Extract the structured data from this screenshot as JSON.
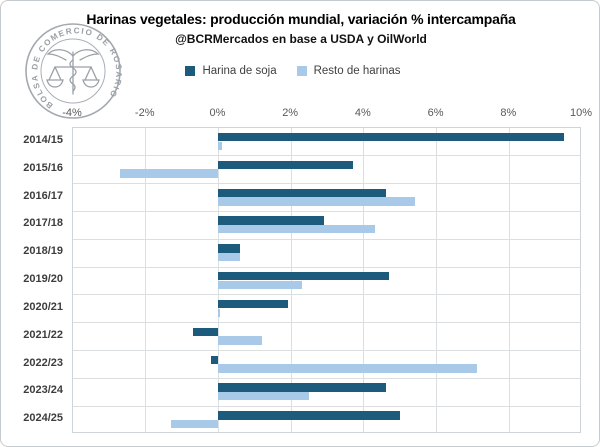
{
  "header": {
    "title": "Harinas vegetales: producción mundial, variación % intercampaña",
    "subtitle": "@BCRMercados en base a USDA y OilWorld"
  },
  "logo": {
    "ring_text": "BOLSA DE COMERCIO DE ROSARIO",
    "color": "#9aa0a7"
  },
  "chart_data": {
    "type": "bar",
    "orientation": "horizontal",
    "title": "Harinas vegetales: producción mundial, variación % intercampaña",
    "subtitle": "@BCRMercados en base a USDA y OilWorld",
    "categories": [
      "2014/15",
      "2015/16",
      "2016/17",
      "2017/18",
      "2018/19",
      "2019/20",
      "2020/21",
      "2021/22",
      "2022/23",
      "2023/24",
      "2024/25"
    ],
    "series": [
      {
        "name": "Harina de soja",
        "color": "#1d5b7d",
        "values": [
          9.5,
          3.7,
          4.6,
          2.9,
          0.6,
          4.7,
          1.9,
          -0.7,
          -0.2,
          4.6,
          5.0
        ]
      },
      {
        "name": "Resto de harinas",
        "color": "#a9c9e8",
        "values": [
          0.1,
          -2.7,
          5.4,
          4.3,
          0.6,
          2.3,
          0.05,
          1.2,
          7.1,
          2.5,
          -1.3
        ]
      }
    ],
    "xlim": [
      -4,
      10
    ],
    "xticks": [
      -4,
      -2,
      0,
      2,
      4,
      6,
      8,
      10
    ],
    "xtick_suffix": "%",
    "grid": true,
    "legend_position": "top-center",
    "grid_color": "#dcdfe2"
  }
}
